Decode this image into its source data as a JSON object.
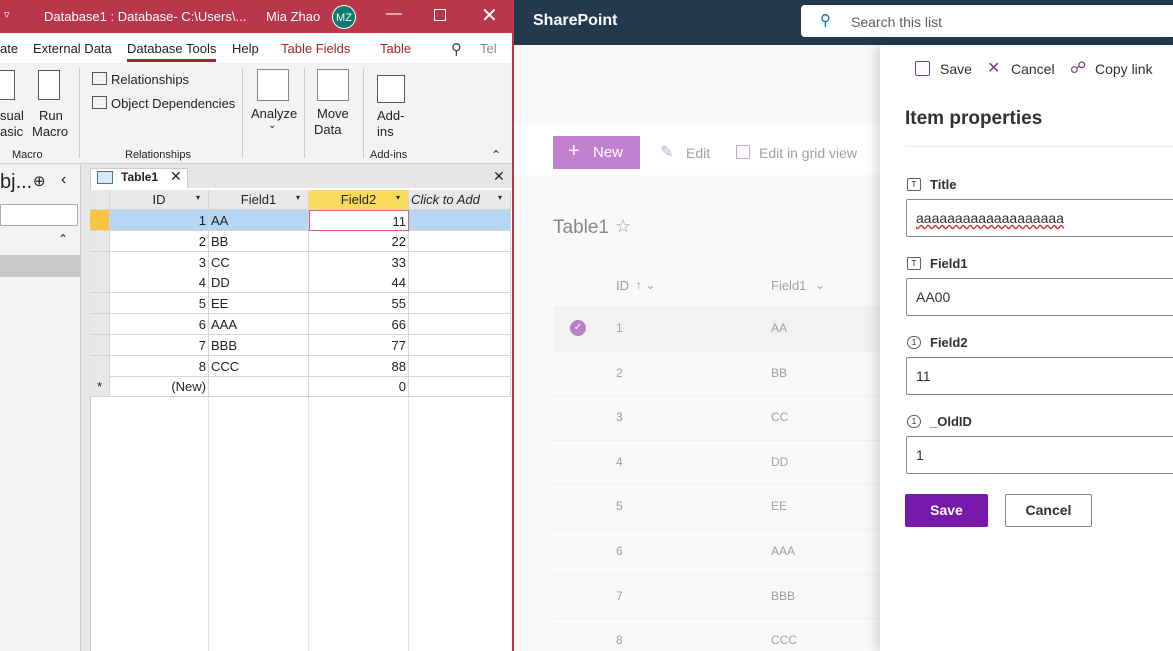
{
  "access": {
    "title_bar": {
      "title": "Database1 : Database- C:\\Users\\...",
      "user": "Mia Zhao",
      "initials": "MZ"
    },
    "tabs": [
      "ate",
      "External Data",
      "Database Tools",
      "Help",
      "Table Fields",
      "Table",
      "Tel"
    ],
    "ribbon": {
      "visual_basic": [
        "sual",
        "asic"
      ],
      "run_macro": [
        "Run",
        "Macro"
      ],
      "relationships": "Relationships",
      "object_dependencies": "Object Dependencies",
      "analyze": "Analyze",
      "move_data": [
        "Move",
        "Data"
      ],
      "add_ins": [
        "Add-",
        "ins"
      ],
      "groups": [
        "Macro",
        "Relationships",
        "Add-ins"
      ]
    },
    "nav": {
      "title": "bj..."
    },
    "table": {
      "tab": "Table1",
      "columns": [
        "ID",
        "Field1",
        "Field2",
        "Click to Add"
      ],
      "rows": [
        [
          1,
          "AA",
          11
        ],
        [
          2,
          "BB",
          22
        ],
        [
          3,
          "CC",
          33
        ],
        [
          4,
          "DD",
          44
        ],
        [
          5,
          "EE",
          55
        ],
        [
          6,
          "AAA",
          66
        ],
        [
          7,
          "BBB",
          77
        ],
        [
          8,
          "CCC",
          88
        ]
      ],
      "new_row": [
        "(New)",
        0
      ]
    }
  },
  "sharepoint": {
    "brand": "SharePoint",
    "search": "Search this list",
    "toolbar": [
      "New",
      "Edit",
      "Edit in grid view"
    ],
    "list_title": "Table1",
    "columns": [
      "ID",
      "Field1"
    ],
    "rows": [
      [
        1,
        "AA"
      ],
      [
        2,
        "BB"
      ],
      [
        3,
        "CC"
      ],
      [
        4,
        "DD"
      ],
      [
        5,
        "EE"
      ],
      [
        6,
        "AAA"
      ],
      [
        7,
        "BBB"
      ],
      [
        8,
        "CCC"
      ]
    ],
    "panel": {
      "toolbar": [
        "Save",
        "Cancel",
        "Copy link"
      ],
      "heading": "Item properties",
      "fields": [
        {
          "label": "Title",
          "value": "aaaaaaaaaaaaaaaaaaa"
        },
        {
          "label": "Field1",
          "value": "AA00"
        },
        {
          "label": "Field2",
          "value": "11"
        },
        {
          "label": "_OldID",
          "value": "1"
        }
      ],
      "buttons": [
        "Save",
        "Cancel"
      ]
    }
  }
}
